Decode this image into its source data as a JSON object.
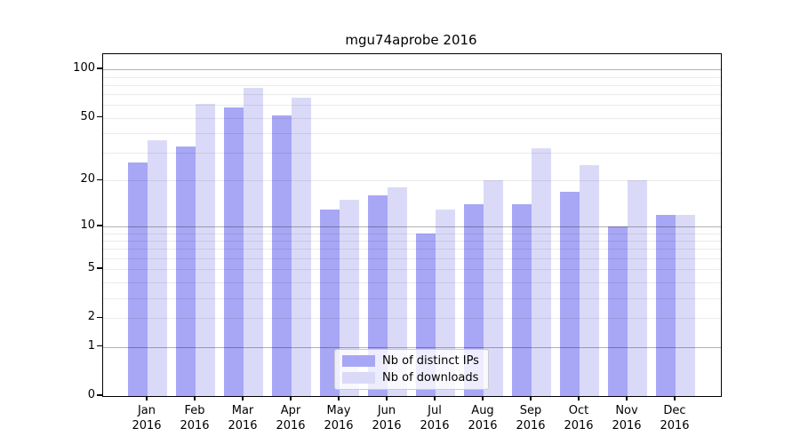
{
  "chart_data": {
    "type": "bar",
    "title": "mgu74aprobe 2016",
    "categories": [
      "Jan",
      "Feb",
      "Mar",
      "Apr",
      "May",
      "Jun",
      "Jul",
      "Aug",
      "Sep",
      "Oct",
      "Nov",
      "Dec"
    ],
    "category_year": "2016",
    "series": [
      {
        "name": "Nb of distinct IPs",
        "color": "#a7a7f5",
        "values": [
          26,
          33,
          58,
          52,
          13,
          16,
          9,
          14,
          14,
          17,
          10,
          12
        ]
      },
      {
        "name": "Nb of downloads",
        "color": "#dadaf8",
        "values": [
          36,
          61,
          77,
          67,
          15,
          18,
          13,
          20,
          32,
          25,
          20,
          12
        ]
      }
    ],
    "xlabel": "",
    "ylabel": "",
    "y_scale": "log1p",
    "ylim": [
      0,
      115
    ],
    "y_ticks": [
      100,
      50,
      20,
      10,
      5,
      2,
      1,
      0
    ],
    "y_major_gridlines": [
      1,
      10,
      100
    ],
    "y_minor_gridlines": [
      2,
      3,
      4,
      5,
      6,
      7,
      8,
      9,
      20,
      30,
      40,
      50,
      60,
      70,
      80,
      90
    ],
    "grid": "on",
    "legend_position": "lower center"
  }
}
